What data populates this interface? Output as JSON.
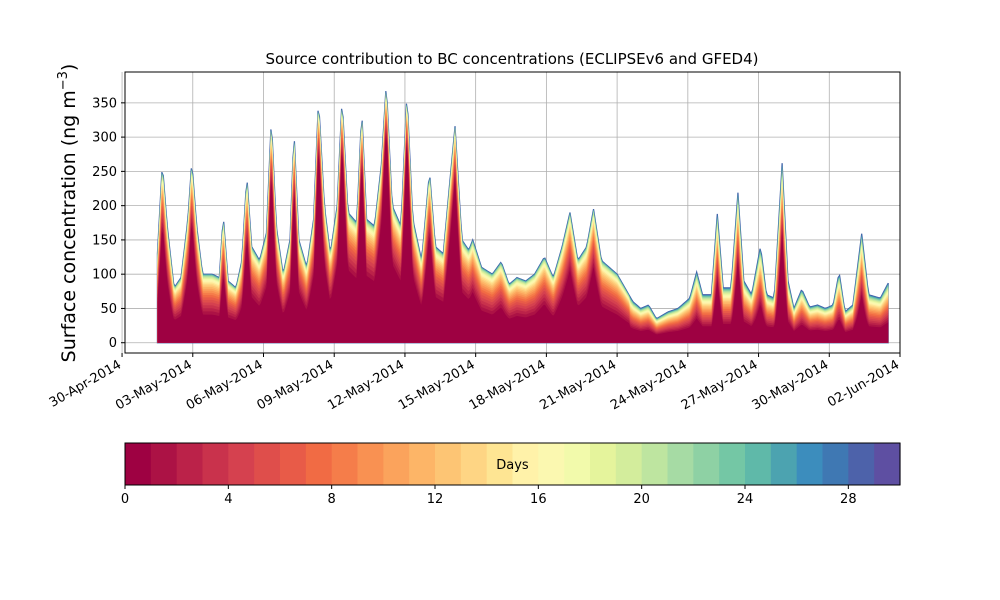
{
  "chart_data": {
    "type": "area",
    "stacked": true,
    "title": "Source contribution to BC concentrations (ECLIPSEv6 and GFED4)",
    "ylabel": "Surface concentration (ng m",
    "ylabel_exponent": "−3",
    "ylabel_close": ")",
    "xlabel": "",
    "x_type": "date",
    "x_start": "2014-05-01T12:00",
    "x_end": "2014-06-01T12:00",
    "xlim": [
      "2014-04-30T03:00",
      "2014-06-02T00:00"
    ],
    "ylim": [
      -15,
      395
    ],
    "grid": true,
    "x_ticks": [
      "30-Apr-2014",
      "03-May-2014",
      "06-May-2014",
      "09-May-2014",
      "12-May-2014",
      "15-May-2014",
      "18-May-2014",
      "21-May-2014",
      "24-May-2014",
      "27-May-2014",
      "30-May-2014",
      "02-Jun-2014"
    ],
    "x_tick_dates": [
      "2014-04-30",
      "2014-05-03",
      "2014-05-06",
      "2014-05-09",
      "2014-05-12",
      "2014-05-15",
      "2014-05-18",
      "2014-05-21",
      "2014-05-24",
      "2014-05-27",
      "2014-05-30",
      "2014-06-02"
    ],
    "y_ticks": [
      0,
      50,
      100,
      150,
      200,
      250,
      300,
      350
    ],
    "series_description": "Stacked contributions by emission age; 30 layers of 1 day each (0–30 days), colored with Spectral colormap",
    "total_key_points": [
      [
        "2014-05-01T12:00",
        130
      ],
      [
        "2014-05-01T17:00",
        262
      ],
      [
        "2014-05-01T22:00",
        170
      ],
      [
        "2014-05-02T05:00",
        80
      ],
      [
        "2014-05-02T12:00",
        95
      ],
      [
        "2014-05-02T19:00",
        180
      ],
      [
        "2014-05-02T23:00",
        265
      ],
      [
        "2014-05-03T04:00",
        170
      ],
      [
        "2014-05-03T10:00",
        100
      ],
      [
        "2014-05-03T20:00",
        100
      ],
      [
        "2014-05-04T03:00",
        95
      ],
      [
        "2014-05-04T07:00",
        186
      ],
      [
        "2014-05-04T12:00",
        90
      ],
      [
        "2014-05-04T20:00",
        80
      ],
      [
        "2014-05-05T02:00",
        120
      ],
      [
        "2014-05-05T07:00",
        244
      ],
      [
        "2014-05-05T12:00",
        140
      ],
      [
        "2014-05-05T20:00",
        120
      ],
      [
        "2014-05-06T03:00",
        160
      ],
      [
        "2014-05-06T08:00",
        328
      ],
      [
        "2014-05-06T13:00",
        170
      ],
      [
        "2014-05-06T20:00",
        100
      ],
      [
        "2014-05-07T03:00",
        150
      ],
      [
        "2014-05-07T07:00",
        310
      ],
      [
        "2014-05-07T12:00",
        150
      ],
      [
        "2014-05-07T20:00",
        110
      ],
      [
        "2014-05-08T03:00",
        180
      ],
      [
        "2014-05-08T08:00",
        356
      ],
      [
        "2014-05-08T14:00",
        200
      ],
      [
        "2014-05-08T20:00",
        130
      ],
      [
        "2014-05-09T03:00",
        200
      ],
      [
        "2014-05-09T08:00",
        357
      ],
      [
        "2014-05-09T14:00",
        190
      ],
      [
        "2014-05-09T23:00",
        175
      ],
      [
        "2014-05-10T04:00",
        340
      ],
      [
        "2014-05-10T09:00",
        180
      ],
      [
        "2014-05-10T17:00",
        170
      ],
      [
        "2014-05-11T00:00",
        260
      ],
      [
        "2014-05-11T05:00",
        379
      ],
      [
        "2014-05-11T11:00",
        200
      ],
      [
        "2014-05-11T20:00",
        170
      ],
      [
        "2014-05-12T02:00",
        365
      ],
      [
        "2014-05-12T08:00",
        180
      ],
      [
        "2014-05-12T17:00",
        120
      ],
      [
        "2014-05-13T01:00",
        250
      ],
      [
        "2014-05-13T07:00",
        140
      ],
      [
        "2014-05-13T15:00",
        130
      ],
      [
        "2014-05-13T22:00",
        240
      ],
      [
        "2014-05-14T03:00",
        316
      ],
      [
        "2014-05-14T10:00",
        150
      ],
      [
        "2014-05-14T17:00",
        135
      ],
      [
        "2014-05-14T21:00",
        150
      ],
      [
        "2014-05-15T06:00",
        110
      ],
      [
        "2014-05-15T17:00",
        100
      ],
      [
        "2014-05-16T02:00",
        118
      ],
      [
        "2014-05-16T10:00",
        85
      ],
      [
        "2014-05-16T18:00",
        95
      ],
      [
        "2014-05-17T03:00",
        90
      ],
      [
        "2014-05-17T12:00",
        100
      ],
      [
        "2014-05-17T22:00",
        125
      ],
      [
        "2014-05-18T07:00",
        95
      ],
      [
        "2014-05-18T16:00",
        140
      ],
      [
        "2014-05-19T00:00",
        190
      ],
      [
        "2014-05-19T08:00",
        120
      ],
      [
        "2014-05-19T17:00",
        140
      ],
      [
        "2014-05-20T00:00",
        195
      ],
      [
        "2014-05-20T08:00",
        120
      ],
      [
        "2014-05-20T16:00",
        110
      ],
      [
        "2014-05-21T00:00",
        100
      ],
      [
        "2014-05-21T08:00",
        80
      ],
      [
        "2014-05-21T16:00",
        60
      ],
      [
        "2014-05-22T00:00",
        50
      ],
      [
        "2014-05-22T08:00",
        55
      ],
      [
        "2014-05-22T16:00",
        35
      ],
      [
        "2014-05-23T04:00",
        45
      ],
      [
        "2014-05-23T14:00",
        50
      ],
      [
        "2014-05-24T02:00",
        65
      ],
      [
        "2014-05-24T09:00",
        103
      ],
      [
        "2014-05-24T15:00",
        70
      ],
      [
        "2014-05-25T00:00",
        70
      ],
      [
        "2014-05-25T06:00",
        188
      ],
      [
        "2014-05-25T12:00",
        80
      ],
      [
        "2014-05-25T20:00",
        80
      ],
      [
        "2014-05-26T03:00",
        219
      ],
      [
        "2014-05-26T09:00",
        90
      ],
      [
        "2014-05-26T17:00",
        70
      ],
      [
        "2014-05-27T02:00",
        141
      ],
      [
        "2014-05-27T08:00",
        70
      ],
      [
        "2014-05-27T16:00",
        65
      ],
      [
        "2014-05-28T00:00",
        262
      ],
      [
        "2014-05-28T06:00",
        90
      ],
      [
        "2014-05-28T12:00",
        50
      ],
      [
        "2014-05-28T20:00",
        78
      ],
      [
        "2014-05-29T04:00",
        52
      ],
      [
        "2014-05-29T12:00",
        55
      ],
      [
        "2014-05-29T20:00",
        50
      ],
      [
        "2014-05-30T04:00",
        55
      ],
      [
        "2014-05-30T10:00",
        103
      ],
      [
        "2014-05-30T16:00",
        45
      ],
      [
        "2014-05-31T00:00",
        55
      ],
      [
        "2014-05-31T09:00",
        159
      ],
      [
        "2014-05-31T16:00",
        70
      ],
      [
        "2014-06-01T04:00",
        65
      ],
      [
        "2014-06-01T12:00",
        87
      ]
    ],
    "colorbar": {
      "label": "Days",
      "min": 0,
      "max": 30,
      "ticks": [
        0,
        4,
        8,
        12,
        16,
        20,
        24,
        28
      ],
      "colormap": "Spectral",
      "n_colors": 30
    },
    "layer_colors": [
      "#9e0142",
      "#ac1245",
      "#bb2249",
      "#c9324c",
      "#d5414f",
      "#df4e4b",
      "#e85b48",
      "#f16b44",
      "#f57d4a",
      "#f99152",
      "#fba35c",
      "#fdb567",
      "#fdc574",
      "#fed584",
      "#fee593",
      "#fff2a9",
      "#fbf8b0",
      "#f2faab",
      "#e5f49c",
      "#d3ed9c",
      "#bee5a0",
      "#a6dba4",
      "#8ed1a4",
      "#74c7a5",
      "#5fb9a9",
      "#4ca3b0",
      "#3c8dbd",
      "#3f78b3",
      "#4d62aa",
      "#5e4fa2"
    ]
  }
}
